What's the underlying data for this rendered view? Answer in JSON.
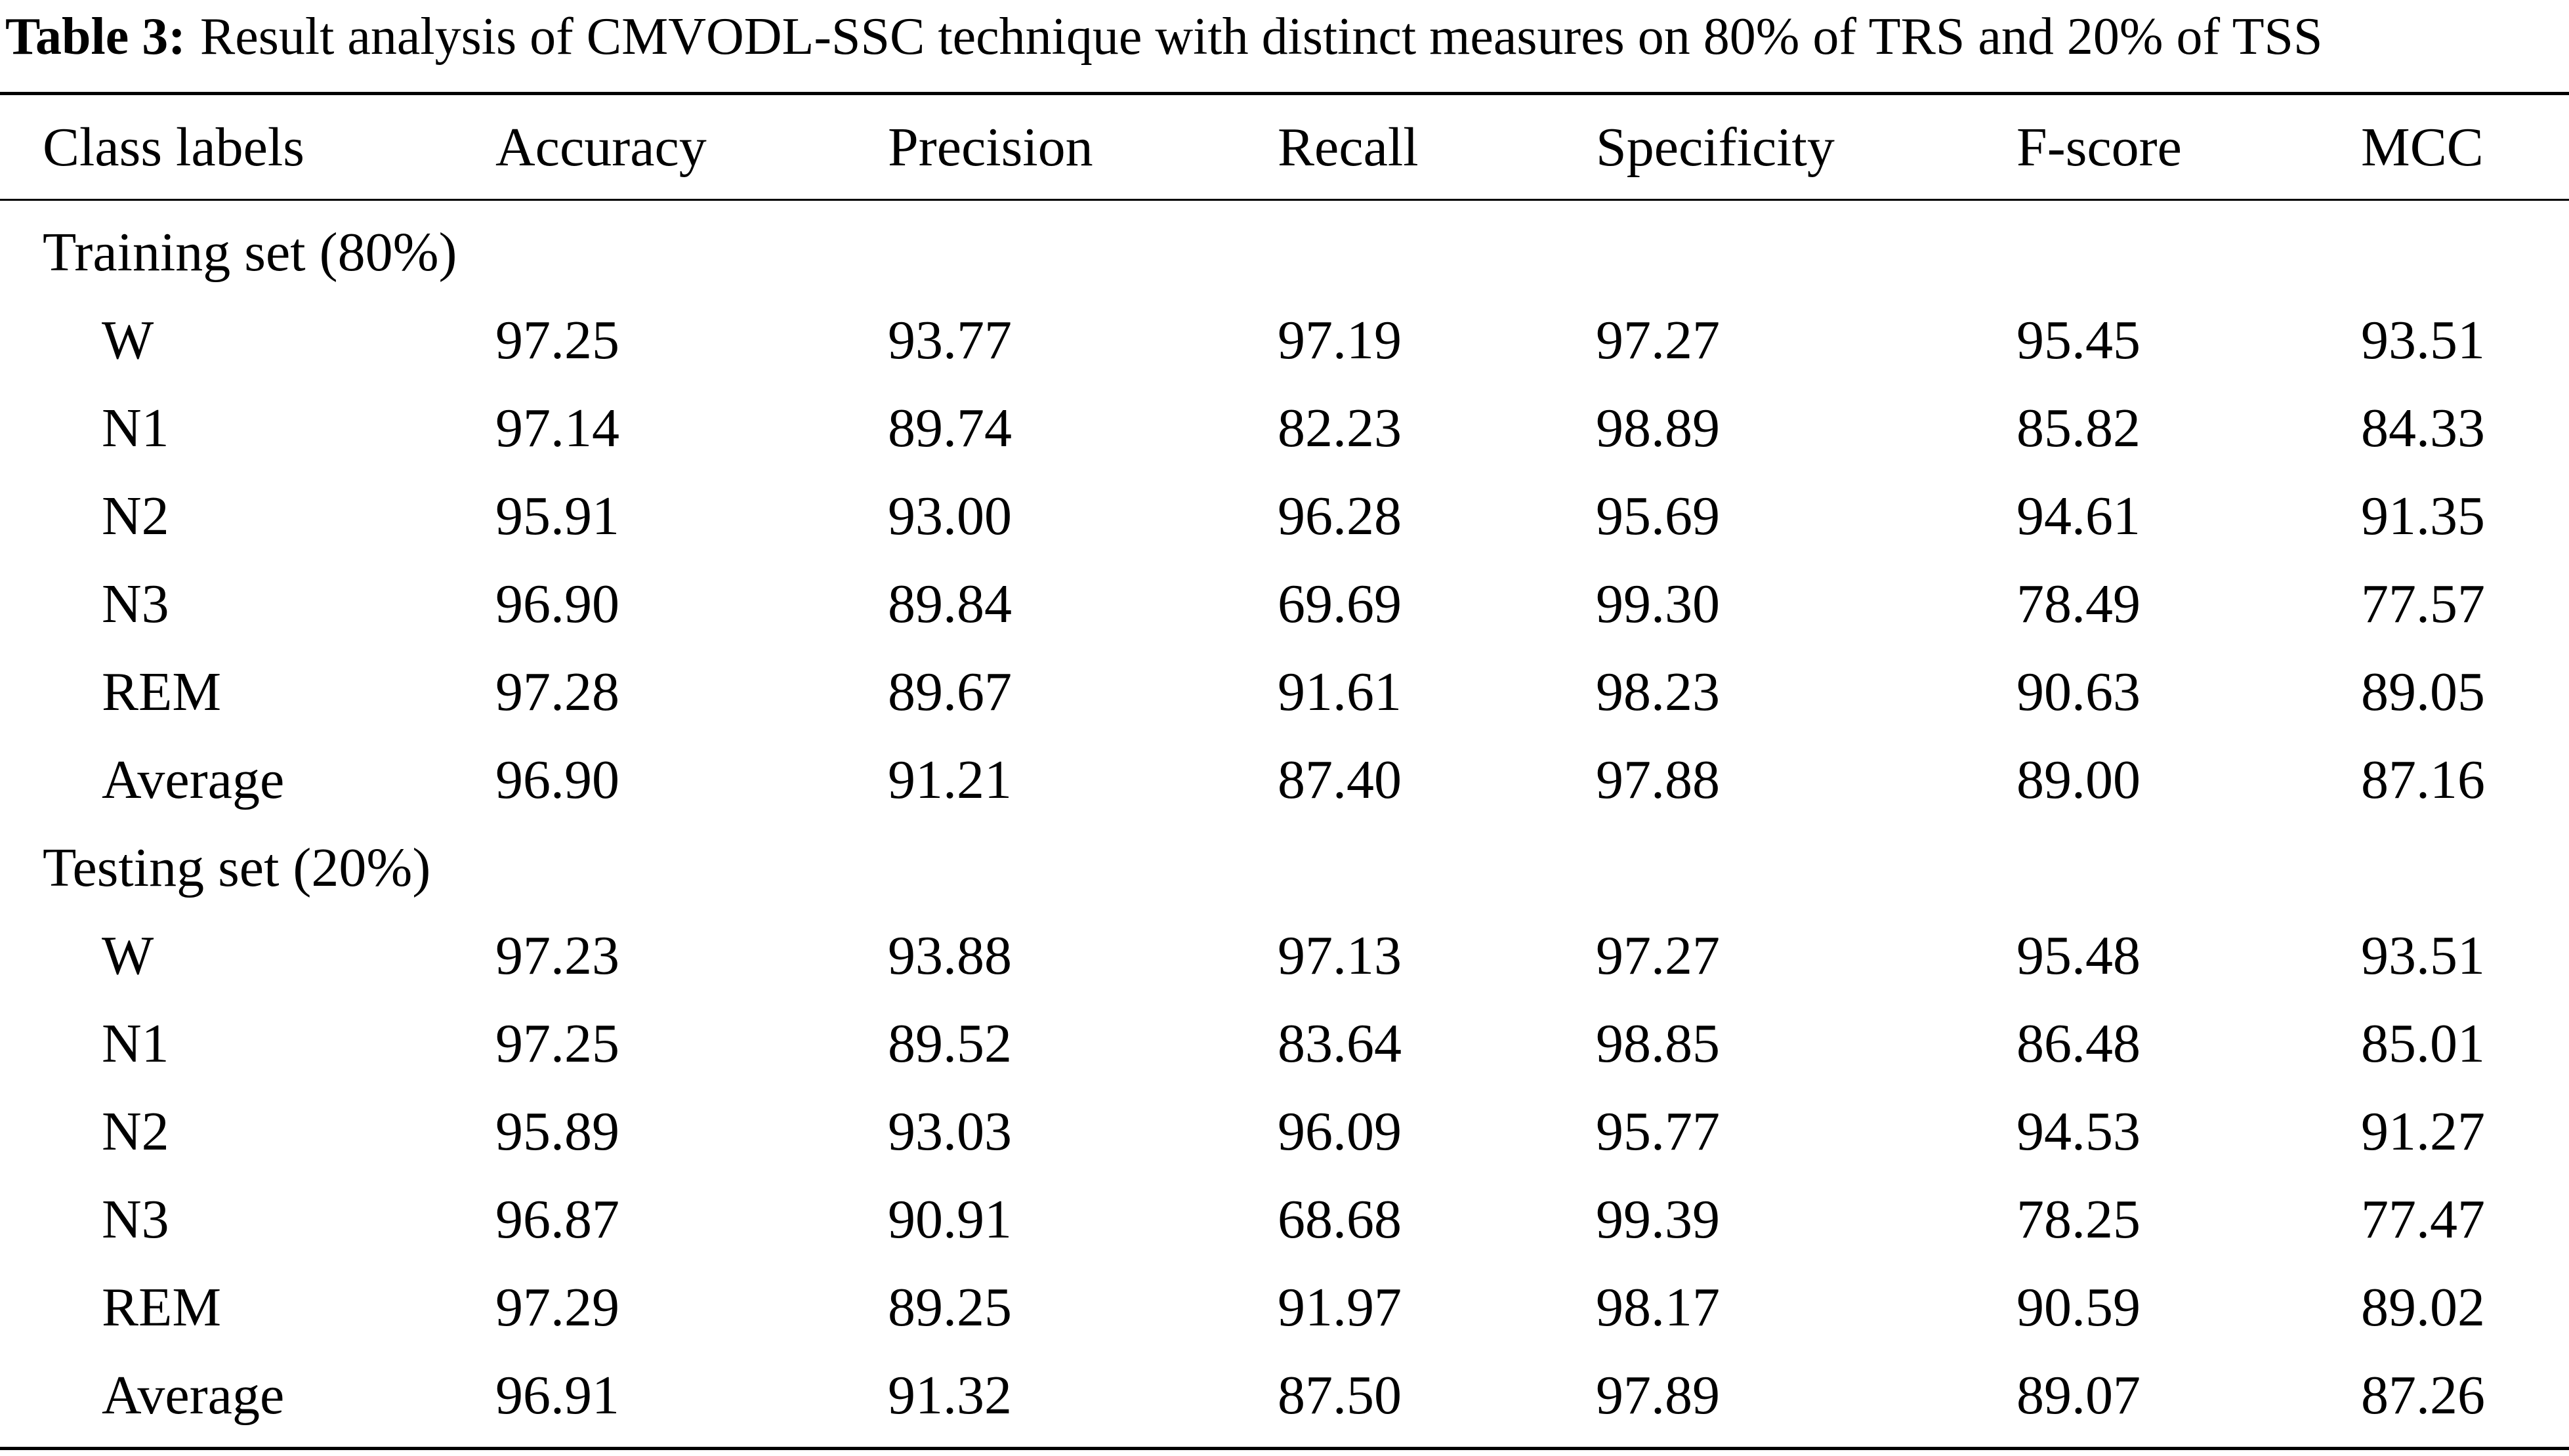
{
  "caption": {
    "label": "Table 3:",
    "text": "Result analysis of CMVODL-SSC technique with distinct measures on 80% of TRS and 20% of TSS"
  },
  "table": {
    "headers": [
      "Class labels",
      "Accuracy",
      "Precision",
      "Recall",
      "Specificity",
      "F-score",
      "MCC"
    ],
    "sections": [
      {
        "title": "Training set (80%)",
        "rows": [
          [
            "W",
            "97.25",
            "93.77",
            "97.19",
            "97.27",
            "95.45",
            "93.51"
          ],
          [
            "N1",
            "97.14",
            "89.74",
            "82.23",
            "98.89",
            "85.82",
            "84.33"
          ],
          [
            "N2",
            "95.91",
            "93.00",
            "96.28",
            "95.69",
            "94.61",
            "91.35"
          ],
          [
            "N3",
            "96.90",
            "89.84",
            "69.69",
            "99.30",
            "78.49",
            "77.57"
          ],
          [
            "REM",
            "97.28",
            "89.67",
            "91.61",
            "98.23",
            "90.63",
            "89.05"
          ],
          [
            "Average",
            "96.90",
            "91.21",
            "87.40",
            "97.88",
            "89.00",
            "87.16"
          ]
        ]
      },
      {
        "title": "Testing set (20%)",
        "rows": [
          [
            "W",
            "97.23",
            "93.88",
            "97.13",
            "97.27",
            "95.48",
            "93.51"
          ],
          [
            "N1",
            "97.25",
            "89.52",
            "83.64",
            "98.85",
            "86.48",
            "85.01"
          ],
          [
            "N2",
            "95.89",
            "93.03",
            "96.09",
            "95.77",
            "94.53",
            "91.27"
          ],
          [
            "N3",
            "96.87",
            "90.91",
            "68.68",
            "99.39",
            "78.25",
            "77.47"
          ],
          [
            "REM",
            "97.29",
            "89.25",
            "91.97",
            "98.17",
            "90.59",
            "89.02"
          ],
          [
            "Average",
            "96.91",
            "91.32",
            "87.50",
            "97.89",
            "89.07",
            "87.26"
          ]
        ]
      }
    ]
  }
}
